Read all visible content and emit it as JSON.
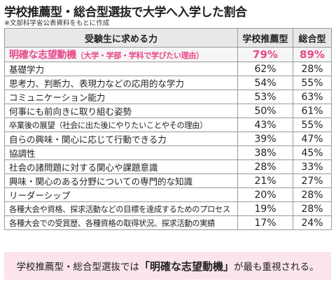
{
  "title": "学校推薦型・総合型選抜で大学へ入学した割合",
  "note": "※文部科学省公表資料をもとに作成",
  "table": {
    "headers": [
      "受験生に求める力",
      "学校推薦型",
      "総合型"
    ],
    "highlight": {
      "label": "明確な志望動機",
      "label_sub": "（大学・学部・学科で学びたい理由）",
      "v1": "79%",
      "v2": "89%"
    },
    "rows": [
      {
        "label": "基礎学力",
        "v1": "62%",
        "v2": "28%"
      },
      {
        "label": "思考力、判断力、表現力などの応用的な学力",
        "v1": "54%",
        "v2": "55%"
      },
      {
        "label": "コミュニケーション能力",
        "v1": "53%",
        "v2": "63%"
      },
      {
        "label": "何事にも前向きに取り組む姿勢",
        "v1": "50%",
        "v2": "61%"
      },
      {
        "label": "卒業後の展望（社会に出た後にやりたいことやその理由）",
        "v1": "43%",
        "v2": "55%"
      },
      {
        "label": "自らの興味・関心に応じて行動できる力",
        "v1": "39%",
        "v2": "47%"
      },
      {
        "label": "協調性",
        "v1": "38%",
        "v2": "45%"
      },
      {
        "label": "社会の諸問題に対する関心や課題意識",
        "v1": "28%",
        "v2": "33%"
      },
      {
        "label": "興味・関心のある分野についての専門的な知識",
        "v1": "21%",
        "v2": "27%"
      },
      {
        "label": "リーダーシップ",
        "v1": "20%",
        "v2": "28%"
      },
      {
        "label": "各種大会や資格、探求活動などの目標を達成するためのプロセス",
        "v1": "19%",
        "v2": "28%"
      },
      {
        "label": "各種大会での受賞歴、各種資格の取得状況、探求活動の実績",
        "v1": "17%",
        "v2": "24%"
      }
    ]
  },
  "summary": {
    "before": "学校推薦型・総合型選抜では",
    "emphasis": "「明確な志望動機」",
    "after": "が最も重視される。"
  }
}
